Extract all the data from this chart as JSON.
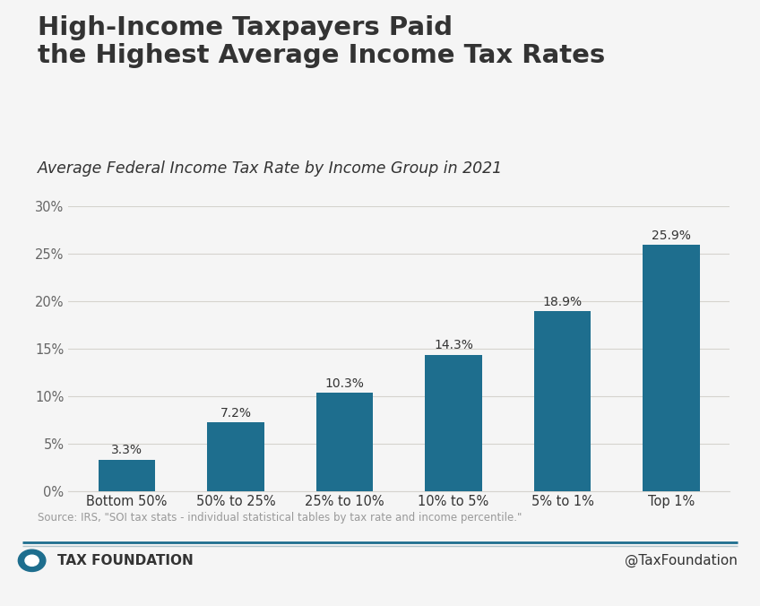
{
  "title_line1": "High-Income Taxpayers Paid",
  "title_line2": "the Highest Average Income Tax Rates",
  "subtitle": "Average Federal Income Tax Rate by Income Group in 2021",
  "categories": [
    "Bottom 50%",
    "50% to 25%",
    "25% to 10%",
    "10% to 5%",
    "5% to 1%",
    "Top 1%"
  ],
  "values": [
    3.3,
    7.2,
    10.3,
    14.3,
    18.9,
    25.9
  ],
  "bar_color": "#1e6e8e",
  "background_color": "#f5f5f5",
  "ylim": [
    0,
    30
  ],
  "yticks": [
    0,
    5,
    10,
    15,
    20,
    25,
    30
  ],
  "ytick_labels": [
    "0%",
    "5%",
    "10%",
    "15%",
    "20%",
    "25%",
    "30%"
  ],
  "source_text": "Source: IRS, \"SOI tax stats - individual statistical tables by tax rate and income percentile.\"",
  "footer_left": "TAX FOUNDATION",
  "footer_right": "@TaxFoundation",
  "title_fontsize": 21,
  "subtitle_fontsize": 12.5,
  "bar_label_fontsize": 10,
  "axis_label_fontsize": 10.5,
  "source_fontsize": 8.5,
  "footer_fontsize": 11,
  "grid_color": "#d5d3ce",
  "text_color": "#333333",
  "axis_text_color": "#666666",
  "footer_line_color": "#1e6e8e",
  "footer_line_color2": "#b0c4cc"
}
